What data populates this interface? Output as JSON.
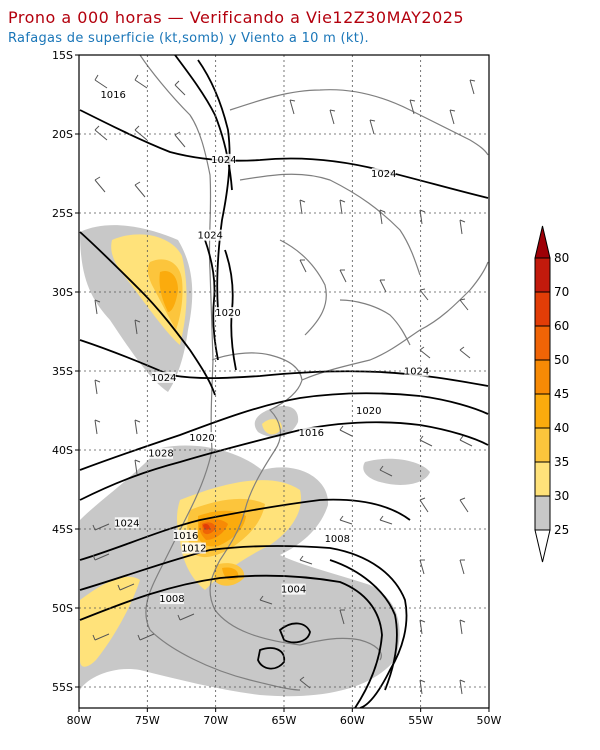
{
  "title": "Prono a 000 horas — Verificando a Vie12Z30MAY2025",
  "subtitle": "Rafagas de superficie (kt,somb) y Viento a 10 m (kt).",
  "map": {
    "lat_labels": [
      "15S",
      "20S",
      "25S",
      "30S",
      "35S",
      "40S",
      "45S",
      "50S",
      "55S"
    ],
    "lon_labels": [
      "80W",
      "75W",
      "70W",
      "65W",
      "60W",
      "55W",
      "50W"
    ],
    "isobar_labels": [
      {
        "text": "1016",
        "lon": -77.5,
        "lat": -17.6
      },
      {
        "text": "1024",
        "lon": -69.4,
        "lat": -21.7
      },
      {
        "text": "1024",
        "lon": -57.7,
        "lat": -22.6
      },
      {
        "text": "1024",
        "lon": -70.4,
        "lat": -26.5
      },
      {
        "text": "1020",
        "lon": -69.1,
        "lat": -31.4
      },
      {
        "text": "1024",
        "lon": -73.8,
        "lat": -35.5
      },
      {
        "text": "1024",
        "lon": -55.3,
        "lat": -35.1
      },
      {
        "text": "1020",
        "lon": -58.8,
        "lat": -37.6
      },
      {
        "text": "1020",
        "lon": -71.0,
        "lat": -39.3
      },
      {
        "text": "1016",
        "lon": -63.0,
        "lat": -39.0
      },
      {
        "text": "1028",
        "lon": -74.0,
        "lat": -40.3
      },
      {
        "text": "1024",
        "lon": -76.5,
        "lat": -44.7
      },
      {
        "text": "1016",
        "lon": -72.2,
        "lat": -45.5
      },
      {
        "text": "1012",
        "lon": -71.6,
        "lat": -46.3
      },
      {
        "text": "1008",
        "lon": -61.1,
        "lat": -45.7
      },
      {
        "text": "1004",
        "lon": -64.3,
        "lat": -48.9
      },
      {
        "text": "1008",
        "lon": -73.2,
        "lat": -49.5
      }
    ]
  },
  "colorbar": {
    "labels": [
      "25",
      "30",
      "35",
      "40",
      "45",
      "50",
      "60",
      "70",
      "80"
    ],
    "colors": [
      "#c8c8c8",
      "#ffe27a",
      "#fcc53c",
      "#fbab0d",
      "#f78a05",
      "#f06406",
      "#e23d07",
      "#c21a0c",
      "#9e0007"
    ]
  }
}
